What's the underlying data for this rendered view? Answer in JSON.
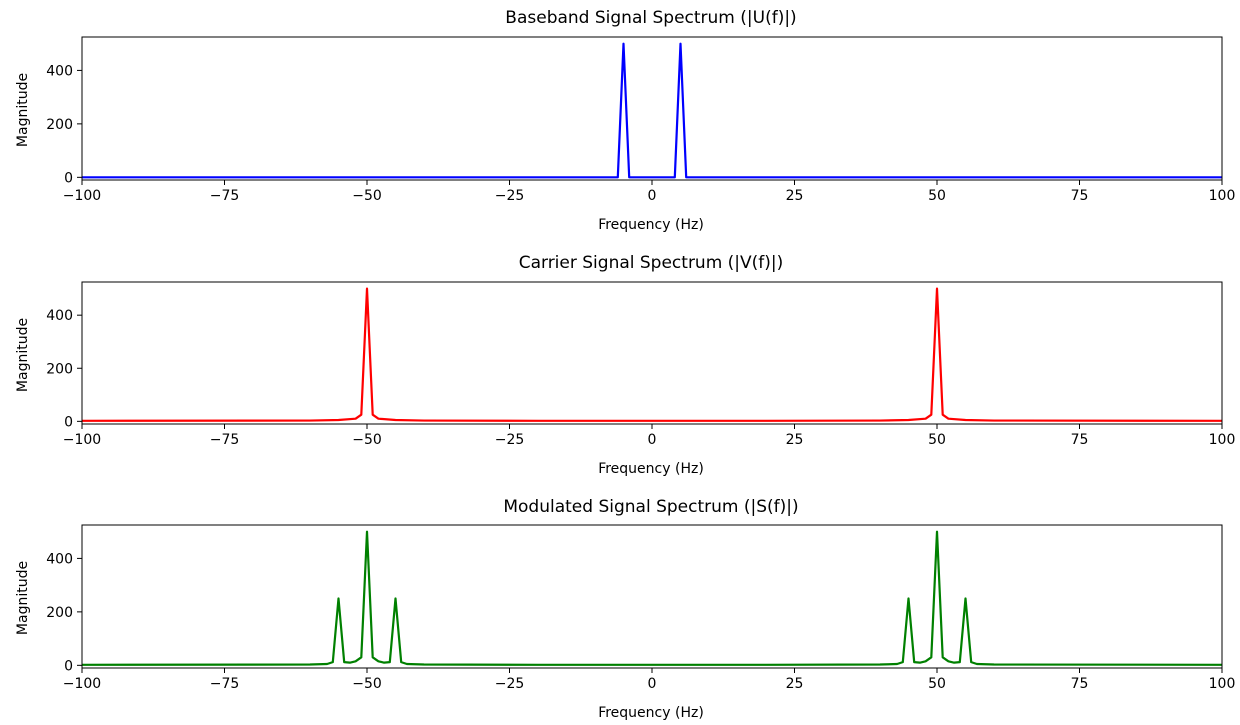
{
  "chart_data": [
    {
      "type": "line",
      "title": "Baseband Signal Spectrum (|U(f)|)",
      "xlabel": "Frequency (Hz)",
      "ylabel": "Magnitude",
      "xlim": [
        -100,
        100
      ],
      "ylim": [
        -10,
        525
      ],
      "xticks": [
        -100,
        -75,
        -50,
        -25,
        0,
        25,
        50,
        75,
        100
      ],
      "xtick_labels": [
        "−100",
        "−75",
        "−50",
        "−25",
        "0",
        "25",
        "50",
        "75",
        "100"
      ],
      "yticks": [
        0,
        200,
        400
      ],
      "ytick_labels": [
        "0",
        "200",
        "400"
      ],
      "grid": false,
      "series": [
        {
          "color": "#0000ff",
          "x": [
            -100,
            -6,
            -5,
            -4,
            -0.5,
            0.5,
            4,
            5,
            6,
            100
          ],
          "y": [
            0,
            0,
            500,
            0,
            0,
            0,
            0,
            500,
            0,
            0
          ]
        }
      ]
    },
    {
      "type": "line",
      "title": "Carrier Signal Spectrum (|V(f)|)",
      "xlabel": "Frequency (Hz)",
      "ylabel": "Magnitude",
      "xlim": [
        -100,
        100
      ],
      "ylim": [
        -10,
        525
      ],
      "xticks": [
        -100,
        -75,
        -50,
        -25,
        0,
        25,
        50,
        75,
        100
      ],
      "xtick_labels": [
        "−100",
        "−75",
        "−50",
        "−25",
        "0",
        "25",
        "50",
        "75",
        "100"
      ],
      "yticks": [
        0,
        200,
        400
      ],
      "ytick_labels": [
        "0",
        "200",
        "400"
      ],
      "grid": false,
      "series": [
        {
          "color": "#ff0000",
          "x": [
            -100,
            -60,
            -55,
            -52,
            -51,
            -50,
            -49,
            -48,
            -45,
            -40,
            -20,
            0,
            20,
            40,
            45,
            48,
            49,
            50,
            51,
            52,
            55,
            60,
            100
          ],
          "y": [
            2,
            3,
            5,
            10,
            25,
            500,
            25,
            10,
            5,
            3,
            2,
            2,
            2,
            3,
            5,
            10,
            25,
            500,
            25,
            10,
            5,
            3,
            2
          ]
        }
      ]
    },
    {
      "type": "line",
      "title": "Modulated Signal Spectrum (|S(f)|)",
      "xlabel": "Frequency (Hz)",
      "ylabel": "Magnitude",
      "xlim": [
        -100,
        100
      ],
      "ylim": [
        -10,
        525
      ],
      "xticks": [
        -100,
        -75,
        -50,
        -25,
        0,
        25,
        50,
        75,
        100
      ],
      "xtick_labels": [
        "−100",
        "−75",
        "−50",
        "−25",
        "0",
        "25",
        "50",
        "75",
        "100"
      ],
      "yticks": [
        0,
        200,
        400
      ],
      "ytick_labels": [
        "0",
        "200",
        "400"
      ],
      "grid": false,
      "series": [
        {
          "color": "#008000",
          "x": [
            -100,
            -60,
            -57,
            -56,
            -55,
            -54,
            -53,
            -52,
            -51,
            -50,
            -49,
            -48,
            -47,
            -46,
            -45,
            -44,
            -43,
            -40,
            -20,
            0,
            20,
            40,
            43,
            44,
            45,
            46,
            47,
            48,
            49,
            50,
            51,
            52,
            53,
            54,
            55,
            56,
            57,
            60,
            100
          ],
          "y": [
            2,
            3,
            5,
            12,
            250,
            12,
            10,
            15,
            30,
            500,
            30,
            15,
            10,
            12,
            250,
            12,
            5,
            3,
            2,
            2,
            2,
            3,
            5,
            12,
            250,
            12,
            10,
            15,
            30,
            500,
            30,
            15,
            10,
            12,
            250,
            12,
            5,
            3,
            2
          ]
        }
      ]
    }
  ]
}
